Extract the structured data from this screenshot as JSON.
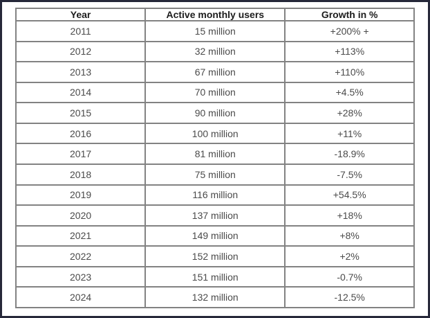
{
  "frame": {
    "border_color": "#262839",
    "background_color": "#ffffff",
    "table_border_color": "#828282",
    "header_text_color": "#1c1c1c",
    "cell_text_color": "#4a4a4a"
  },
  "chart_data": {
    "type": "table",
    "columns": [
      "Year",
      "Active monthly users",
      "Growth in %"
    ],
    "rows": [
      [
        "2011",
        "15 million",
        "+200% +"
      ],
      [
        "2012",
        "32 million",
        "+113%"
      ],
      [
        "2013",
        "67 million",
        "+110%"
      ],
      [
        "2014",
        "70 million",
        "+4.5%"
      ],
      [
        "2015",
        "90 million",
        "+28%"
      ],
      [
        "2016",
        "100 million",
        "+11%"
      ],
      [
        "2017",
        "81 million",
        "-18.9%"
      ],
      [
        "2018",
        "75 million",
        "-7.5%"
      ],
      [
        "2019",
        "116 million",
        "+54.5%"
      ],
      [
        "2020",
        "137 million",
        "+18%"
      ],
      [
        "2021",
        "149 million",
        "+8%"
      ],
      [
        "2022",
        "152 million",
        "+2%"
      ],
      [
        "2023",
        "151 million",
        "-0.7%"
      ],
      [
        "2024",
        "132 million",
        "-12.5%"
      ]
    ]
  }
}
